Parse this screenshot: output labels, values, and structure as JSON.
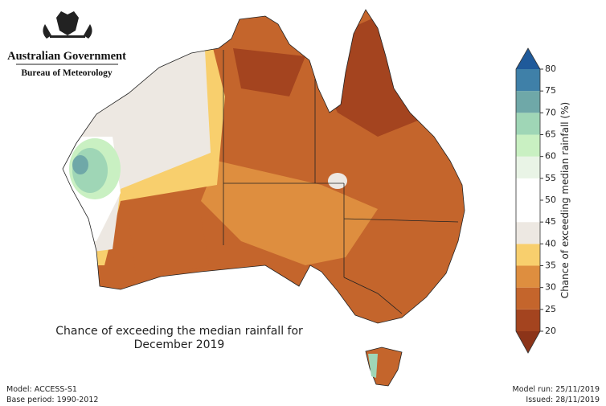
{
  "header": {
    "org": "Australian Government",
    "dept": "Bureau of Meteorology"
  },
  "map": {
    "title_lines": [
      "Chance of exceeding the median rainfall for",
      "December 2019"
    ]
  },
  "colorbar": {
    "label": "Chance of exceeding median rainfall (%)",
    "ticks": [
      20,
      25,
      30,
      35,
      40,
      45,
      50,
      55,
      60,
      65,
      70,
      75,
      80
    ],
    "colors": [
      "#a4441f",
      "#c4652c",
      "#de8e3f",
      "#f8cf6d",
      "#ede8e2",
      "#ffffff",
      "#ffffff",
      "#e9f4e6",
      "#c9f0c2",
      "#9fd6b6",
      "#6fa8a8",
      "#3f80a8"
    ],
    "under_color": "#8c3419",
    "over_color": "#1f5a9a"
  },
  "footer": {
    "model": "Model: ACCESS-S1",
    "base_period": "Base period: 1990-2012",
    "model_run": "Model run: 25/11/2019",
    "issued": "Issued: 28/11/2019"
  }
}
